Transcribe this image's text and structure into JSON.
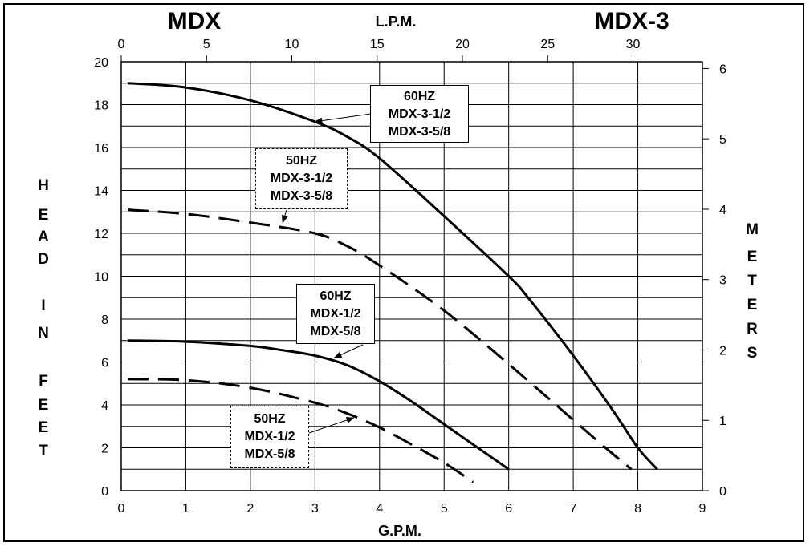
{
  "header": {
    "left_title": "MDX",
    "center_title": "L.P.M.",
    "right_title": "MDX-3"
  },
  "axes": {
    "x_label": "G.P.M.",
    "left_label_letters": [
      "H",
      "E",
      "A",
      "D",
      "I",
      "N",
      "F",
      "E",
      "E",
      "T"
    ],
    "right_label_letters": [
      "M",
      "E",
      "T",
      "E",
      "R",
      "S"
    ]
  },
  "chart_data": {
    "type": "line",
    "xlabel": "G.P.M.",
    "ylabel": "HEAD IN FEET",
    "xlim": [
      0,
      9
    ],
    "ylim": [
      0,
      20
    ],
    "x_ticks": [
      0,
      1,
      2,
      3,
      4,
      5,
      6,
      7,
      8,
      9
    ],
    "y_ticks": [
      0,
      2,
      4,
      6,
      8,
      10,
      12,
      14,
      16,
      18,
      20
    ],
    "secondary_x": {
      "label": "L.P.M.",
      "lim": [
        0,
        34.07
      ],
      "ticks": [
        0,
        5,
        10,
        15,
        20,
        25,
        30
      ]
    },
    "secondary_y": {
      "label": "METERS",
      "lim": [
        0,
        6.096
      ],
      "ticks": [
        0,
        1,
        2,
        3,
        4,
        5,
        6
      ]
    },
    "grid": true,
    "series": [
      {
        "id": "mdx3-60",
        "style": "solid",
        "x": [
          0.1,
          1.0,
          2.0,
          3.0,
          3.5,
          4.0,
          5.0,
          6.0,
          6.3,
          7.0,
          7.6,
          8.0,
          8.3
        ],
        "y": [
          19.0,
          18.8,
          18.2,
          17.2,
          16.5,
          15.5,
          12.8,
          10.0,
          9.0,
          6.3,
          3.8,
          2.0,
          1.0
        ]
      },
      {
        "id": "mdx3-50",
        "style": "dashed",
        "x": [
          0.1,
          1.0,
          2.0,
          3.0,
          3.5,
          4.0,
          5.0,
          6.0,
          7.0,
          7.5,
          7.9
        ],
        "y": [
          13.1,
          12.9,
          12.5,
          12.0,
          11.4,
          10.5,
          8.4,
          5.9,
          3.3,
          2.0,
          1.0
        ]
      },
      {
        "id": "mdx-60",
        "style": "solid",
        "x": [
          0.1,
          1.0,
          2.0,
          2.5,
          3.0,
          3.5,
          4.0,
          4.5,
          5.0,
          5.5,
          6.0
        ],
        "y": [
          7.0,
          6.95,
          6.75,
          6.55,
          6.3,
          5.85,
          5.1,
          4.15,
          3.1,
          2.05,
          1.0
        ]
      },
      {
        "id": "mdx-50",
        "style": "dashed",
        "x": [
          0.1,
          1.0,
          2.0,
          3.0,
          3.5,
          4.0,
          4.5,
          5.0,
          5.45
        ],
        "y": [
          5.2,
          5.15,
          4.8,
          4.1,
          3.6,
          2.95,
          2.15,
          1.3,
          0.4
        ]
      }
    ],
    "annotations": [
      {
        "lines": [
          "60HZ",
          "MDX-3-1/2",
          "MDX-3-5/8"
        ],
        "border": "solid",
        "arrow_to": [
          3.0,
          17.2
        ]
      },
      {
        "lines": [
          "50HZ",
          "MDX-3-1/2",
          "MDX-3-5/8"
        ],
        "border": "dashed",
        "arrow_to": [
          2.5,
          12.5
        ]
      },
      {
        "lines": [
          "60HZ",
          "MDX-1/2",
          "MDX-5/8"
        ],
        "border": "solid",
        "arrow_to": [
          3.3,
          6.2
        ]
      },
      {
        "lines": [
          "50HZ",
          "MDX-1/2",
          "MDX-5/8"
        ],
        "border": "dashed",
        "arrow_to": [
          3.6,
          3.4
        ]
      }
    ]
  }
}
